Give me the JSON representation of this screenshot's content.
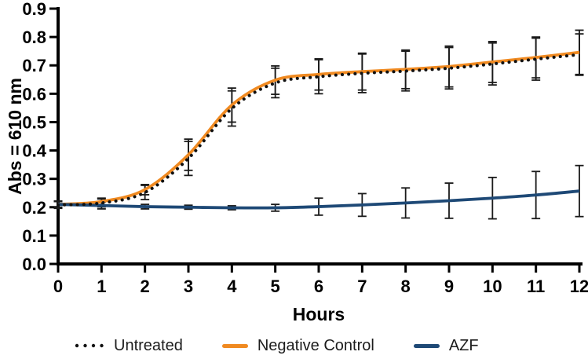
{
  "page": {
    "background": "#ffffff"
  },
  "chart_data": {
    "type": "line",
    "title": "",
    "xlabel": "Hours",
    "ylabel": "Abs = 610 nm",
    "xlim": [
      0,
      12
    ],
    "ylim": [
      0.0,
      0.9
    ],
    "x_ticks": [
      0,
      1,
      2,
      3,
      4,
      5,
      6,
      7,
      8,
      9,
      10,
      11,
      12
    ],
    "y_ticks": [
      "0.0",
      "0.1",
      "0.2",
      "0.3",
      "0.4",
      "0.5",
      "0.6",
      "0.7",
      "0.8",
      "0.9"
    ],
    "grid": false,
    "legend_position": "bottom",
    "error_bar_color": "#1a1a1a",
    "x": [
      0,
      1,
      2,
      3,
      4,
      5,
      6,
      7,
      8,
      9,
      10,
      11,
      12
    ],
    "series": [
      {
        "name": "Untreated",
        "line_style": "dotted",
        "color": "#111111",
        "values": [
          0.208,
          0.215,
          0.252,
          0.372,
          0.548,
          0.638,
          0.66,
          0.672,
          0.68,
          0.69,
          0.705,
          0.722,
          0.738
        ],
        "errors": [
          0.012,
          0.014,
          0.025,
          0.06,
          0.062,
          0.052,
          0.06,
          0.068,
          0.07,
          0.073,
          0.074,
          0.074,
          0.073
        ]
      },
      {
        "name": "Negative Control",
        "line_style": "solid",
        "color": "#F08A21",
        "values": [
          0.21,
          0.22,
          0.262,
          0.385,
          0.56,
          0.648,
          0.668,
          0.678,
          0.686,
          0.696,
          0.712,
          0.728,
          0.746
        ],
        "errors": [
          0.01,
          0.012,
          0.018,
          0.055,
          0.06,
          0.05,
          0.055,
          0.065,
          0.068,
          0.072,
          0.072,
          0.072,
          0.078
        ]
      },
      {
        "name": "AZF",
        "line_style": "solid",
        "color": "#1E4976",
        "values": [
          0.21,
          0.206,
          0.202,
          0.2,
          0.198,
          0.198,
          0.202,
          0.208,
          0.215,
          0.223,
          0.232,
          0.243,
          0.257
        ],
        "errors": [
          0.012,
          0.012,
          0.008,
          0.007,
          0.007,
          0.012,
          0.03,
          0.04,
          0.053,
          0.062,
          0.073,
          0.083,
          0.09
        ]
      }
    ]
  }
}
